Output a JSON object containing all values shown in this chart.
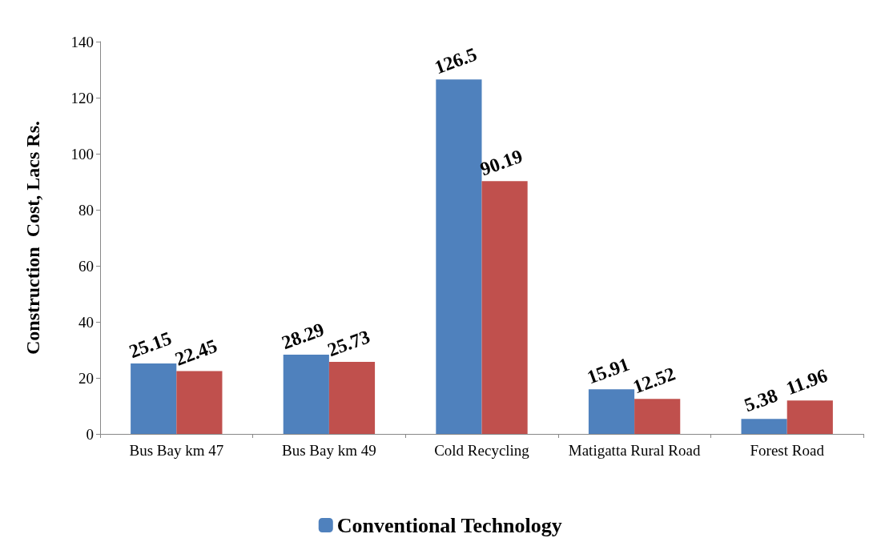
{
  "chart_data": {
    "type": "bar",
    "ylabel": "Construction  Cost, Lacs Rs.",
    "categories": [
      "Bus Bay km 47",
      "Bus Bay km 49",
      "Cold Recycling",
      "Matigatta Rural Road",
      "Forest Road"
    ],
    "series": [
      {
        "name": "Conventional Technology",
        "color": "#4f81bd",
        "values": [
          25.15,
          28.29,
          126.5,
          15.91,
          5.38
        ]
      },
      {
        "color": "#c0504d",
        "values": [
          22.45,
          25.73,
          90.19,
          12.52,
          11.96
        ]
      }
    ],
    "ylim": [
      0,
      140
    ],
    "yticks": [
      0,
      20,
      40,
      60,
      80,
      100,
      120,
      140
    ],
    "grid": false,
    "legend": "bottom",
    "data_labels": true
  }
}
